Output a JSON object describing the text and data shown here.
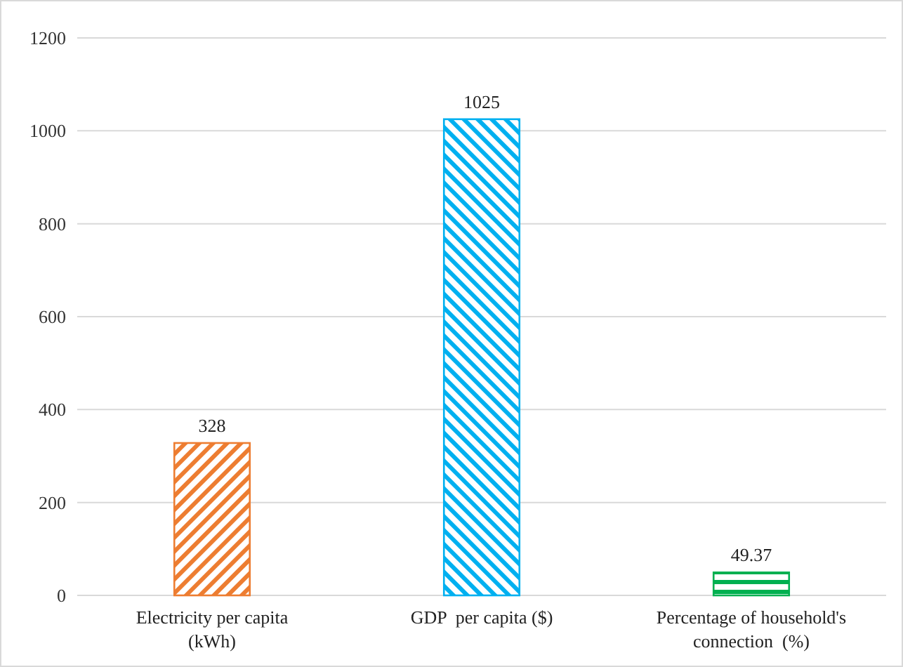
{
  "chart_data": {
    "type": "bar",
    "categories": [
      "Electricity per capita (kWh)",
      "GDP  per capita ($)",
      "Percentage of household's connection  (%)"
    ],
    "values": [
      328,
      1025,
      49.37
    ],
    "colors": [
      "#ed7d31",
      "#00b0f0",
      "#00b050"
    ],
    "ylim": [
      0,
      1200
    ],
    "yticks": [
      0,
      200,
      400,
      600,
      800,
      1000,
      1200
    ],
    "grid": "y",
    "data_labels": true
  }
}
